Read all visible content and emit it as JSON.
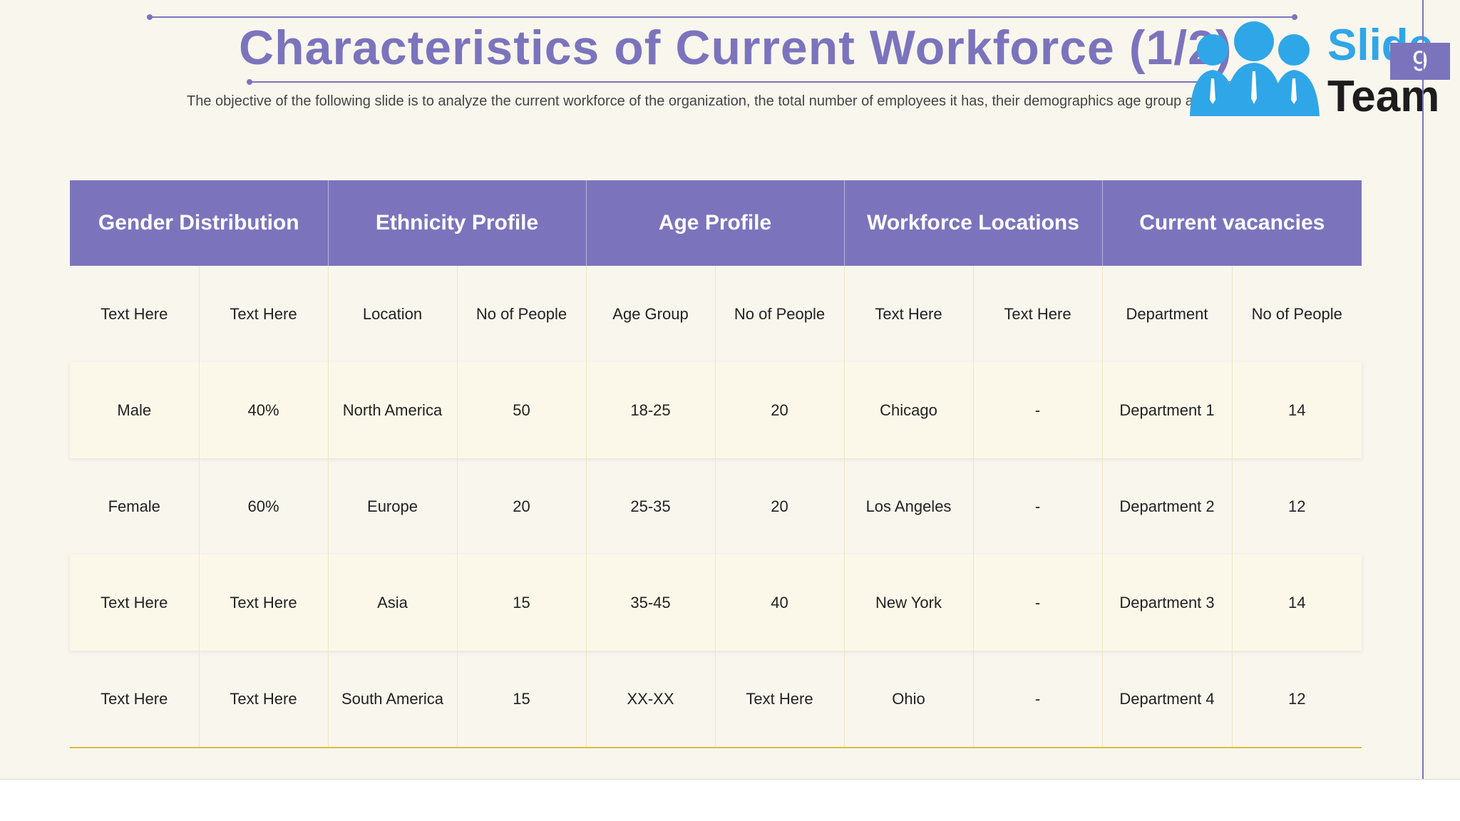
{
  "slide": {
    "title": "Characteristics of Current Workforce (1/2)",
    "subtitle": "The objective of the following slide is to analyze the current workforce of the organization, the total number of employees it has, their demographics age group an",
    "page_number": "9",
    "logo": {
      "line1": "Slide",
      "line2": "Team"
    }
  },
  "table": {
    "groups": [
      "Gender Distribution",
      "Ethnicity Profile",
      "Age Profile",
      "Workforce Locations",
      "Current vacancies"
    ],
    "rows": [
      [
        "Text Here",
        "Text Here",
        "Location",
        "No of People",
        "Age Group",
        "No of People",
        "Text Here",
        "Text Here",
        "Department",
        "No of People"
      ],
      [
        "Male",
        "40%",
        "North America",
        "50",
        "18-25",
        "20",
        "Chicago",
        "-",
        "Department 1",
        "14"
      ],
      [
        "Female",
        "60%",
        "Europe",
        "20",
        "25-35",
        "20",
        "Los Angeles",
        "-",
        "Department 2",
        "12"
      ],
      [
        "Text Here",
        "Text Here",
        "Asia",
        "15",
        "35-45",
        "40",
        "New York",
        "-",
        "Department 3",
        "14"
      ],
      [
        "Text Here",
        "Text Here",
        "South America",
        "15",
        "XX-XX",
        "Text Here",
        "Ohio",
        "-",
        "Department 4",
        "12"
      ]
    ]
  },
  "colors": {
    "accent": "#7b74bd",
    "background": "#f9f6ee",
    "logo_blue": "#2fa6e8",
    "rule_gold": "#d8be3c"
  }
}
